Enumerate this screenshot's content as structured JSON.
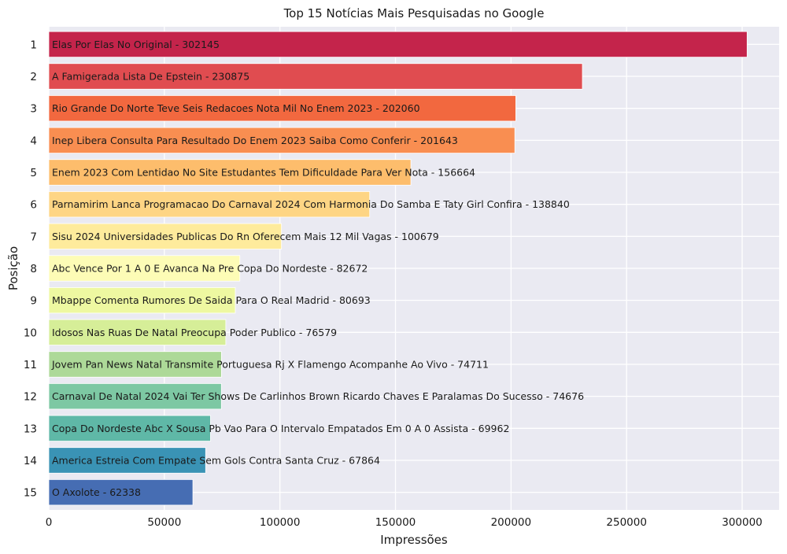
{
  "chart_data": {
    "type": "bar",
    "orientation": "horizontal",
    "title": "Top 15 Notícias Mais Pesquisadas no Google",
    "xlabel": "Impressões",
    "ylabel": "Posição",
    "xlim": [
      0,
      316000
    ],
    "xticks": [
      0,
      50000,
      100000,
      150000,
      200000,
      250000,
      300000
    ],
    "grid": true,
    "background": "#eaeaf2",
    "categories": [
      "1",
      "2",
      "3",
      "4",
      "5",
      "6",
      "7",
      "8",
      "9",
      "10",
      "11",
      "12",
      "13",
      "14",
      "15"
    ],
    "labels": [
      "Elas Por Elas No Original - 302145",
      "A Famigerada Lista De Epstein - 230875",
      "Rio Grande Do Norte Teve Seis Redacoes Nota Mil No Enem 2023 - 202060",
      "Inep Libera Consulta Para Resultado Do Enem 2023 Saiba Como Conferir - 201643",
      "Enem 2023 Com Lentidao No Site Estudantes Tem Dificuldade Para Ver Nota - 156664",
      "Parnamirim Lanca Programacao Do Carnaval 2024 Com Harmonia Do Samba E Taty Girl Confira - 138840",
      "Sisu 2024 Universidades Publicas Do Rn Oferecem Mais 12 Mil Vagas - 100679",
      "Abc Vence Por 1 A 0 E Avanca Na Pre Copa Do Nordeste - 82672",
      "Mbappe Comenta Rumores De Saida Para O Real Madrid - 80693",
      "Idosos Nas Ruas De Natal Preocupa Poder Publico - 76579",
      "Jovem Pan News Natal Transmite Portuguesa Rj X Flamengo Acompanhe Ao Vivo - 74711",
      "Carnaval De Natal 2024 Vai Ter Shows De Carlinhos Brown Ricardo Chaves E Paralamas Do Sucesso - 74676",
      "Copa Do Nordeste Abc X Sousa Pb Vao Para O Intervalo Empatados Em 0 A 0 Assista - 69962",
      "America Estreia Com Empate Sem Gols Contra Santa Cruz - 67864",
      "O Axolote - 62338"
    ],
    "values": [
      302145,
      230875,
      202060,
      201643,
      156664,
      138840,
      100679,
      82672,
      80693,
      76579,
      74711,
      74676,
      69962,
      67864,
      62338
    ],
    "colors": [
      "#c4244b",
      "#e04c50",
      "#f2683f",
      "#f98e51",
      "#fdbd6c",
      "#fed584",
      "#feeb9c",
      "#fdfcb6",
      "#eef8a1",
      "#d6ee98",
      "#add998",
      "#7dc8a3",
      "#5fb8a7",
      "#3a93b5",
      "#466db3"
    ]
  }
}
